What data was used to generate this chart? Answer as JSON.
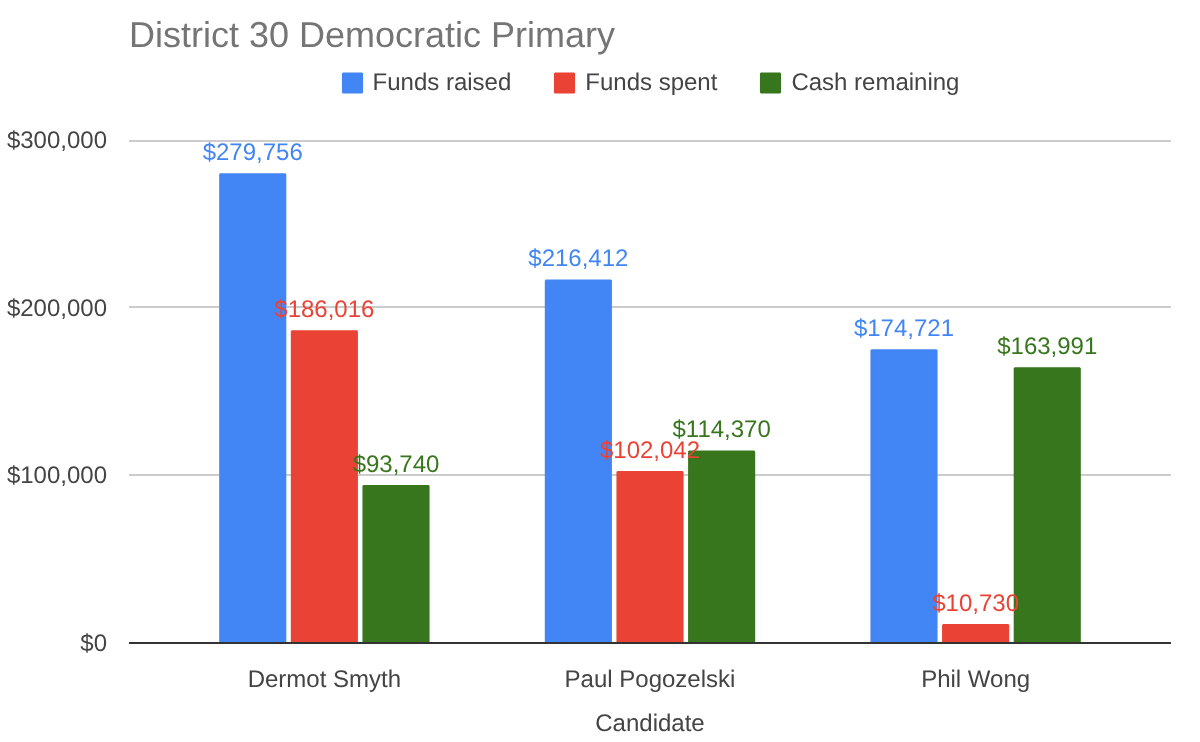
{
  "chart_data": {
    "type": "bar",
    "title": "District 30 Democratic Primary",
    "xlabel": "Candidate",
    "categories": [
      "Dermot Smyth",
      "Paul Pogozelski",
      "Phil Wong"
    ],
    "series": [
      {
        "name": "Funds raised",
        "color": "#4285f4",
        "values": [
          279756,
          216412,
          174721
        ],
        "value_labels": [
          "$279,756",
          "$216,412",
          "$174,721"
        ]
      },
      {
        "name": "Funds spent",
        "color": "#ea4335",
        "values": [
          186016,
          102042,
          10730
        ],
        "value_labels": [
          "$186,016",
          "$102,042",
          "$10,730"
        ]
      },
      {
        "name": "Cash remaining",
        "color": "#38761d",
        "values": [
          93740,
          114370,
          163991
        ],
        "value_labels": [
          "$93,740",
          "$114,370",
          "$163,991"
        ]
      }
    ],
    "ylim": [
      0,
      345000
    ],
    "yticks": [
      {
        "value": 0,
        "label": "$0"
      },
      {
        "value": 100000,
        "label": "$100,000"
      },
      {
        "value": 200000,
        "label": "$200,000"
      },
      {
        "value": 300000,
        "label": "$300,000"
      }
    ],
    "grid": "y",
    "legend": "top"
  }
}
